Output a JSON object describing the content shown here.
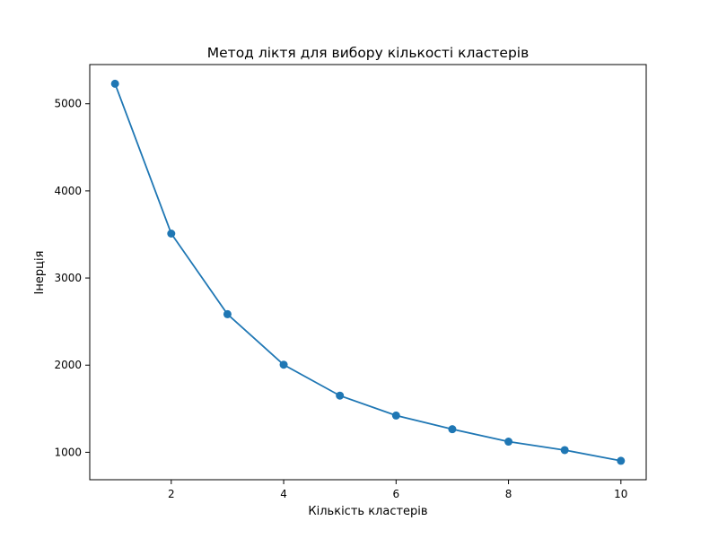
{
  "chart_data": {
    "type": "line",
    "title": "Метод ліктя для вибору кількості кластерів",
    "xlabel": "Кількість кластерів",
    "ylabel": "Інерція",
    "x": [
      1,
      2,
      3,
      4,
      5,
      6,
      7,
      8,
      9,
      10
    ],
    "series": [
      {
        "name": "Інерція",
        "values": [
          5230,
          3510,
          2585,
          2005,
          1650,
          1422,
          1265,
          1122,
          1025,
          902
        ],
        "color": "#1f77b4",
        "marker": "circle"
      }
    ],
    "xlim": [
      0.55,
      10.45
    ],
    "ylim": [
      685,
      5450
    ],
    "xticks": [
      2,
      4,
      6,
      8,
      10
    ],
    "xtick_labels": [
      "2",
      "4",
      "6",
      "8",
      "10"
    ],
    "yticks": [
      1000,
      2000,
      3000,
      4000,
      5000
    ],
    "ytick_labels": [
      "1000",
      "2000",
      "3000",
      "4000",
      "5000"
    ],
    "grid": false,
    "legend": "none"
  }
}
